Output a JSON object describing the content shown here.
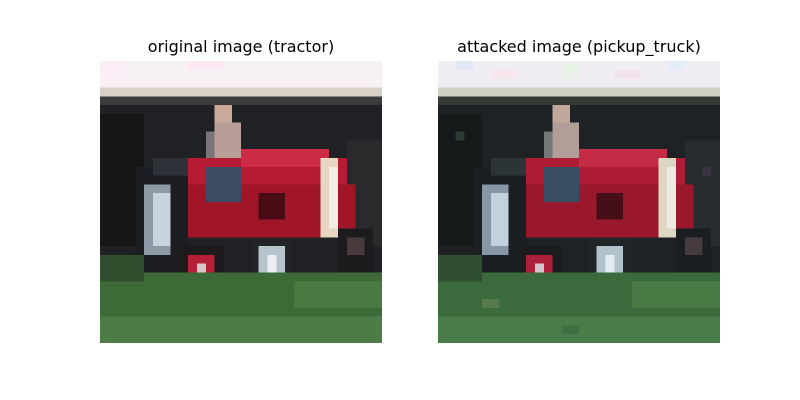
{
  "panels": [
    {
      "title": "original image (tractor)"
    },
    {
      "title": "attacked image (pickup_truck)"
    }
  ]
}
